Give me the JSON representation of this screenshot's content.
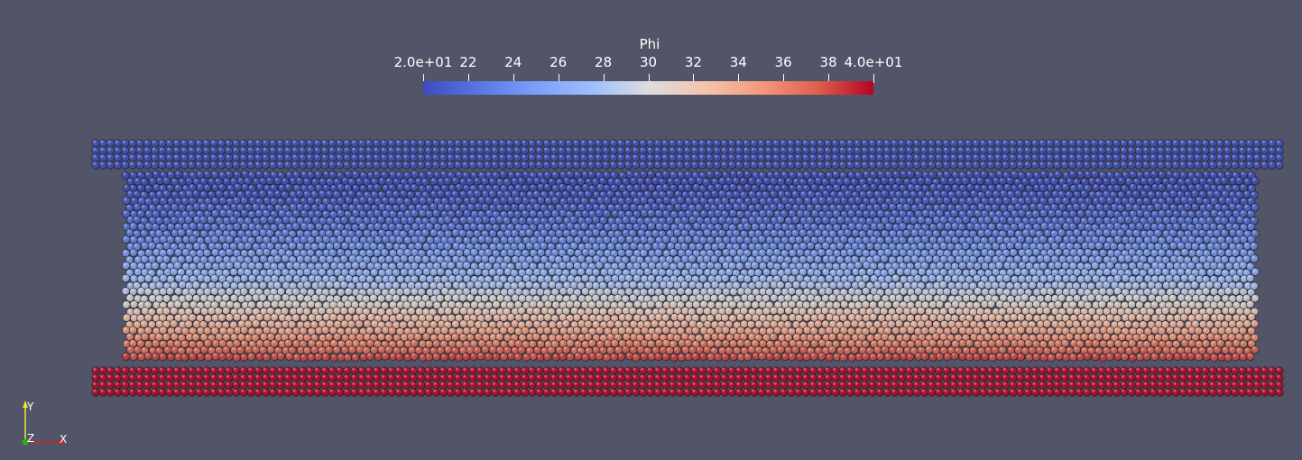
{
  "viewer": {
    "background": "#525468"
  },
  "colorbar": {
    "title": "Phi",
    "range": [
      20,
      40
    ],
    "ticks": [
      {
        "value": 20,
        "label": "2.0e+01"
      },
      {
        "value": 22,
        "label": "22"
      },
      {
        "value": 24,
        "label": "24"
      },
      {
        "value": 26,
        "label": "26"
      },
      {
        "value": 28,
        "label": "28"
      },
      {
        "value": 30,
        "label": "30"
      },
      {
        "value": 32,
        "label": "32"
      },
      {
        "value": 34,
        "label": "34"
      },
      {
        "value": 36,
        "label": "36"
      },
      {
        "value": 38,
        "label": "38"
      },
      {
        "value": 40,
        "label": "4.0e+01"
      }
    ],
    "colormap": "Cool to Warm",
    "colors": {
      "low": "#3b4cc0",
      "mid": "#dddddd",
      "high": "#b40426"
    }
  },
  "orientation_axes": {
    "y_label": "Y",
    "z_label": "Z",
    "x_label": "X",
    "y_color": "#e8e830",
    "x_color": "#d42020",
    "z_color": "#20b020"
  }
}
